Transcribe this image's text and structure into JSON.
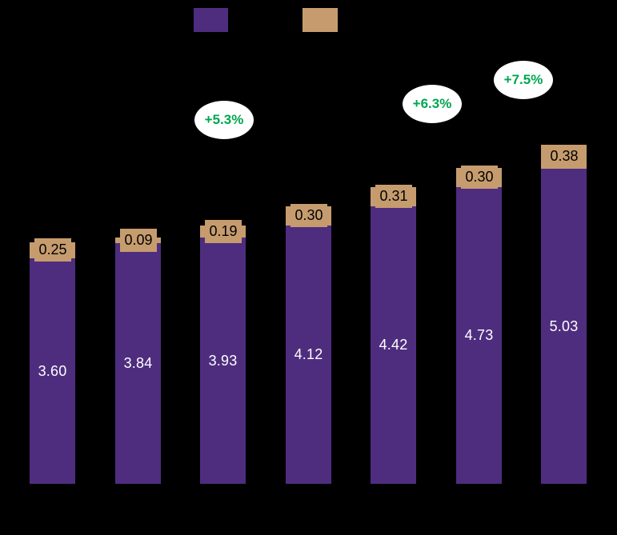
{
  "background_color": "#000000",
  "legend": {
    "swatches": [
      {
        "name": "series-1",
        "color": "#4E2D7F"
      },
      {
        "name": "series-2",
        "color": "#C69C6E"
      }
    ]
  },
  "chart_data": {
    "type": "bar",
    "stacked": true,
    "n_groups": 7,
    "categories": [
      "",
      "",
      "",
      "",
      "",
      "",
      ""
    ],
    "series": [
      {
        "name": "base-segment-purple",
        "color": "#4E2D7F",
        "values": [
          3.6,
          3.84,
          3.93,
          4.12,
          4.42,
          4.73,
          5.03
        ],
        "labels": [
          "3.60",
          "3.84",
          "3.93",
          "4.12",
          "4.42",
          "4.73",
          "5.03"
        ],
        "label_color": "#FFFFFF"
      },
      {
        "name": "cap-segment-tan",
        "color": "#C69C6E",
        "values": [
          0.25,
          0.09,
          0.19,
          0.3,
          0.31,
          0.3,
          0.38
        ],
        "labels": [
          "0.25",
          "0.09",
          "0.19",
          "0.30",
          "0.31",
          "0.30",
          "0.38"
        ],
        "label_color": "#000000"
      }
    ],
    "totals": [
      3.85,
      3.93,
      4.12,
      4.42,
      4.73,
      5.03,
      5.41
    ],
    "annotations": [
      {
        "text": "+5.3%",
        "text_color": "#00A64F",
        "bubble_color": "#FFFFFF"
      },
      {
        "text": "+6.3%",
        "text_color": "#00A64F",
        "bubble_color": "#FFFFFF"
      },
      {
        "text": "+7.5%",
        "text_color": "#00A64F",
        "bubble_color": "#FFFFFF"
      }
    ],
    "title": "",
    "xlabel": "",
    "ylabel": "",
    "axis_text_visible": false,
    "legend_position": "top",
    "grid": false
  }
}
